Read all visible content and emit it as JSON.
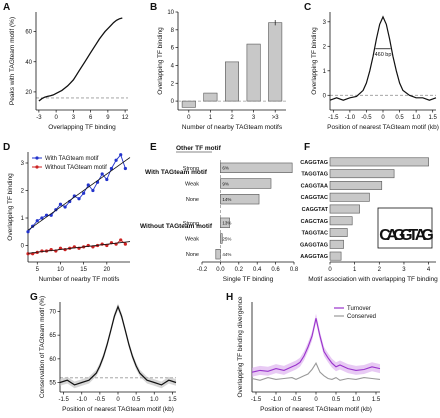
{
  "chart_data": [
    {
      "panel": "A",
      "type": "line",
      "ylabel": "Peaks with TAGteam motif (%)",
      "xlabel": "Overlapping TF binding",
      "xticks": [
        "-3",
        "0",
        "3",
        "6",
        "9",
        "12"
      ],
      "yticks": [
        "20",
        "40",
        "60"
      ],
      "xlim": [
        -3.5,
        12.5
      ],
      "ylim": [
        8,
        73
      ],
      "baseline": 16,
      "series": [
        {
          "x": [
            -3,
            -2.5,
            -2,
            -1.5,
            -1,
            -0.5,
            0,
            0.5,
            1,
            1.5,
            2,
            2.5,
            3,
            3.5,
            4,
            4.5,
            5,
            5.5,
            6,
            6.5,
            7,
            7.5,
            8,
            8.5,
            9,
            9.5,
            10,
            10.5,
            11,
            11.5
          ],
          "values": [
            14,
            15.5,
            16.5,
            17,
            17.5,
            18,
            19,
            20,
            21,
            22.5,
            24,
            26,
            28,
            31,
            34,
            37,
            40,
            43,
            46,
            49,
            52,
            55,
            57.5,
            60,
            62,
            64,
            66,
            67.5,
            68.5,
            69
          ]
        }
      ]
    },
    {
      "panel": "B",
      "type": "bar",
      "ylabel": "Overlapping TF binding",
      "xlabel": "Number of nearby TAGteam motifs",
      "categories": [
        "0",
        "1",
        "2",
        "3",
        ">3"
      ],
      "values": [
        -0.7,
        0.9,
        4.4,
        6.4,
        8.8
      ],
      "yticks": [
        "0",
        "2",
        "4",
        "6",
        "8",
        "10"
      ],
      "ylim": [
        -1,
        10
      ],
      "bar_color": "#c8c8c8"
    },
    {
      "panel": "C",
      "type": "line",
      "ylabel": "Overlapping TF binding",
      "xlabel": "Position of nearest TAGteam motif (kb)",
      "annotation": "460 bp",
      "xticks": [
        "-1.5",
        "-1.0",
        "-0.5",
        "0",
        "0.5",
        "1.0",
        "1.5"
      ],
      "yticks": [
        "0",
        "1",
        "2",
        "3"
      ],
      "xlim": [
        -1.6,
        1.6
      ],
      "ylim": [
        -0.6,
        3.4
      ],
      "series": [
        {
          "x": [
            -1.6,
            -1.4,
            -1.2,
            -1.0,
            -0.8,
            -0.6,
            -0.5,
            -0.4,
            -0.3,
            -0.2,
            -0.1,
            0,
            0.1,
            0.2,
            0.3,
            0.4,
            0.5,
            0.6,
            0.8,
            1.0,
            1.2,
            1.4,
            1.6
          ],
          "values": [
            -0.2,
            -0.1,
            -0.2,
            -0.1,
            -0.05,
            0.2,
            0.5,
            1.0,
            1.6,
            2.3,
            2.9,
            3.2,
            2.9,
            2.3,
            1.6,
            1.0,
            0.5,
            0.2,
            0.0,
            -0.1,
            -0.1,
            -0.2,
            -0.1
          ]
        }
      ]
    },
    {
      "panel": "D",
      "type": "scatter",
      "ylabel": "Overlapping TF binding",
      "xlabel": "Number of nearby TF motifs",
      "xticks": [
        "5",
        "10",
        "15",
        "20"
      ],
      "yticks": [
        "0",
        "1",
        "2",
        "3"
      ],
      "xlim": [
        3,
        25
      ],
      "ylim": [
        -0.6,
        3.4
      ],
      "legend": [
        "With TAGteam motif",
        "Without TAGteam motif"
      ],
      "series": [
        {
          "name": "With TAGteam motif",
          "color": "#2233cc",
          "x": [
            3,
            4,
            5,
            6,
            7,
            8,
            9,
            10,
            11,
            12,
            13,
            14,
            15,
            16,
            17,
            18,
            19,
            20,
            21,
            22,
            23,
            24
          ],
          "values": [
            0.5,
            0.7,
            0.9,
            1.0,
            1.1,
            1.1,
            1.3,
            1.5,
            1.4,
            1.6,
            1.8,
            1.7,
            1.9,
            2.2,
            2.0,
            2.3,
            2.6,
            2.4,
            2.8,
            3.1,
            3.3,
            2.8
          ]
        },
        {
          "name": "Without TAGteam motif",
          "color": "#cc2222",
          "x": [
            3,
            4,
            5,
            6,
            7,
            8,
            9,
            10,
            11,
            12,
            13,
            14,
            15,
            16,
            17,
            18,
            19,
            20,
            21,
            22,
            23,
            24
          ],
          "values": [
            -0.3,
            -0.3,
            -0.25,
            -0.2,
            -0.2,
            -0.15,
            -0.2,
            -0.1,
            -0.15,
            -0.1,
            -0.05,
            -0.1,
            -0.05,
            0.0,
            -0.05,
            0.0,
            0.05,
            0.0,
            0.1,
            0.05,
            0.2,
            0.05
          ]
        }
      ]
    },
    {
      "panel": "E",
      "type": "bar",
      "title": "Other TF motif",
      "xlabel": "Single TF binding",
      "groups": [
        "With TAGteam motif",
        "Without TAGteam motif"
      ],
      "categories": [
        "Strong",
        "Weak",
        "None",
        "Strong",
        "Weak",
        "None"
      ],
      "values": [
        0.78,
        0.55,
        0.42,
        0.1,
        0.02,
        -0.05
      ],
      "bar_labels": [
        "6%",
        "9%",
        "14%",
        "13%",
        "25%",
        "44%"
      ],
      "xticks": [
        "-0.2",
        "0.0",
        "0.2",
        "0.4",
        "0.6",
        "0.8"
      ],
      "xlim": [
        -0.2,
        0.8
      ],
      "bar_color": "#c8c8c8"
    },
    {
      "panel": "F",
      "type": "bar",
      "xlabel": "Motif association with overlapping TF binding",
      "categories": [
        "CAGGTAG",
        "TAGGTAG",
        "CAGGTAA",
        "CAGGTAC",
        "CAGGTAT",
        "CAGCTAG",
        "TAGGTAC",
        "GAGGTAG",
        "AAGGTAG"
      ],
      "values": [
        4.0,
        2.6,
        2.1,
        1.6,
        1.2,
        0.9,
        0.7,
        0.55,
        0.45
      ],
      "xticks": [
        "0",
        "1",
        "2",
        "3",
        "4"
      ],
      "xlim": [
        0,
        4.3
      ],
      "bar_color": "#c8c8c8",
      "logo": [
        "C",
        "A",
        "G",
        "G",
        "T",
        "A",
        "G"
      ]
    },
    {
      "panel": "G",
      "type": "line",
      "ylabel": "Conservation of TAGteam motif (%)",
      "xlabel": "Position of nearest TAGteam motif (kb)",
      "xticks": [
        "-1.5",
        "-1.0",
        "-0.5",
        "0",
        "0.5",
        "1.0",
        "1.5"
      ],
      "yticks": [
        "55",
        "60",
        "65",
        "70"
      ],
      "xlim": [
        -1.6,
        1.6
      ],
      "ylim": [
        53,
        72
      ],
      "baseline": 56,
      "series": [
        {
          "x": [
            -1.6,
            -1.4,
            -1.2,
            -1.0,
            -0.8,
            -0.6,
            -0.5,
            -0.4,
            -0.3,
            -0.2,
            -0.1,
            0,
            0.1,
            0.2,
            0.3,
            0.4,
            0.5,
            0.6,
            0.8,
            1.0,
            1.2,
            1.4,
            1.6
          ],
          "values": [
            55,
            55.5,
            54.5,
            55,
            55.5,
            57,
            58.5,
            60.5,
            63,
            66,
            69,
            71,
            69,
            66,
            63,
            60.5,
            58.5,
            57,
            55.5,
            55,
            54.5,
            55.5,
            55
          ]
        }
      ]
    },
    {
      "panel": "H",
      "type": "line",
      "ylabel": "Overlapping TF binding divergence",
      "xlabel": "Position of nearest TAGteam motif (kb)",
      "xticks": [
        "-1.5",
        "-1.0",
        "-0.5",
        "0",
        "0.5",
        "1.0",
        "1.5"
      ],
      "xlim": [
        -1.6,
        1.6
      ],
      "ylim": [
        0,
        1
      ],
      "legend": [
        "Turnover",
        "Conserved"
      ],
      "series": [
        {
          "name": "Turnover",
          "color": "#9933cc",
          "x": [
            -1.6,
            -1.4,
            -1.2,
            -1.0,
            -0.8,
            -0.6,
            -0.5,
            -0.4,
            -0.3,
            -0.2,
            -0.1,
            0,
            0.1,
            0.2,
            0.3,
            0.4,
            0.5,
            0.6,
            0.8,
            1.0,
            1.2,
            1.4,
            1.6
          ],
          "values": [
            0.22,
            0.24,
            0.23,
            0.26,
            0.24,
            0.28,
            0.3,
            0.33,
            0.4,
            0.5,
            0.62,
            0.82,
            0.62,
            0.45,
            0.38,
            0.32,
            0.28,
            0.3,
            0.26,
            0.24,
            0.25,
            0.28,
            0.26
          ]
        },
        {
          "name": "Conserved",
          "color": "#999999",
          "x": [
            -1.6,
            -1.4,
            -1.2,
            -1.0,
            -0.8,
            -0.6,
            -0.5,
            -0.4,
            -0.3,
            -0.2,
            -0.1,
            0,
            0.1,
            0.2,
            0.3,
            0.4,
            0.5,
            0.6,
            0.8,
            1.0,
            1.2,
            1.4,
            1.6
          ],
          "values": [
            0.15,
            0.13,
            0.16,
            0.14,
            0.15,
            0.16,
            0.14,
            0.16,
            0.18,
            0.2,
            0.25,
            0.32,
            0.22,
            0.18,
            0.15,
            0.14,
            0.16,
            0.13,
            0.15,
            0.14,
            0.16,
            0.15,
            0.14
          ]
        }
      ]
    }
  ]
}
